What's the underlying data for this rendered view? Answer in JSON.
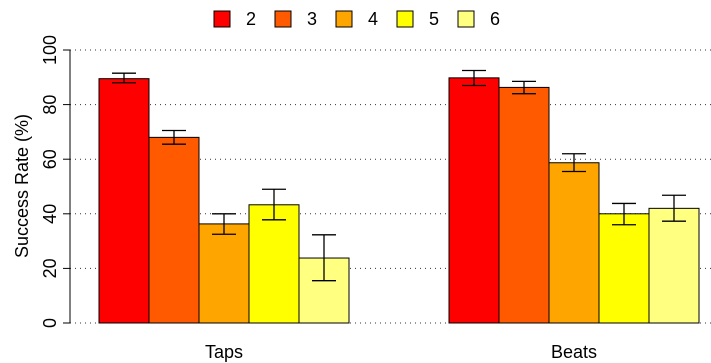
{
  "chart_data": {
    "type": "bar",
    "categories": [
      "Taps",
      "Beats"
    ],
    "series": [
      {
        "name": "2",
        "color": "#ff0000",
        "values": [
          89.5,
          89.8
        ],
        "error_low": [
          88.0,
          87.0
        ],
        "error_high": [
          91.5,
          92.5
        ]
      },
      {
        "name": "3",
        "color": "#ff5a00",
        "values": [
          68.0,
          86.3
        ],
        "error_low": [
          65.5,
          84.0
        ],
        "error_high": [
          70.5,
          88.5
        ]
      },
      {
        "name": "4",
        "color": "#ffa500",
        "values": [
          36.3,
          58.7
        ],
        "error_low": [
          32.5,
          55.5
        ],
        "error_high": [
          40.0,
          62.0
        ]
      },
      {
        "name": "5",
        "color": "#ffff00",
        "values": [
          43.3,
          40.0
        ],
        "error_low": [
          37.8,
          36.0
        ],
        "error_high": [
          49.0,
          43.8
        ]
      },
      {
        "name": "6",
        "color": "#ffff80",
        "values": [
          23.8,
          42.0
        ],
        "error_low": [
          15.5,
          37.3
        ],
        "error_high": [
          32.3,
          46.8
        ]
      }
    ],
    "title": "",
    "xlabel": "",
    "ylabel": "Success Rate (%)",
    "ylim": [
      0,
      100
    ],
    "yticks": [
      "0",
      "20",
      "40",
      "60",
      "80",
      "100"
    ],
    "grid": "horizontal dotted",
    "legend_position": "top"
  }
}
